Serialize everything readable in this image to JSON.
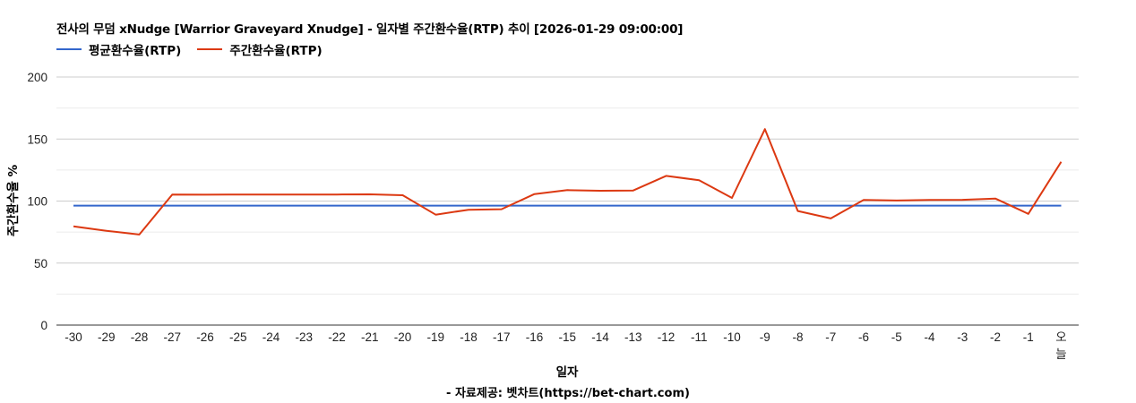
{
  "chart_data": {
    "type": "line",
    "title": "전사의 무덤 xNudge [Warrior Graveyard Xnudge] - 일자별 주간환수율(RTP) 추이 [2026-01-29 09:00:00]",
    "xlabel": "일자",
    "ylabel": "주간환수율 %",
    "ylim": [
      0,
      200
    ],
    "yticks": [
      0,
      50,
      100,
      150,
      200
    ],
    "grid": true,
    "legend_position": "top",
    "categories": [
      "-30",
      "-29",
      "-28",
      "-27",
      "-26",
      "-25",
      "-24",
      "-23",
      "-22",
      "-21",
      "-20",
      "-19",
      "-18",
      "-17",
      "-16",
      "-15",
      "-14",
      "-13",
      "-12",
      "-11",
      "-10",
      "-9",
      "-8",
      "-7",
      "-6",
      "-5",
      "-4",
      "-3",
      "-2",
      "-1",
      "오늘"
    ],
    "series": [
      {
        "name": "평균환수율(RTP)",
        "color": "#3366cc",
        "values": [
          96.3,
          96.3,
          96.3,
          96.3,
          96.3,
          96.3,
          96.3,
          96.3,
          96.3,
          96.3,
          96.3,
          96.3,
          96.3,
          96.3,
          96.3,
          96.3,
          96.3,
          96.3,
          96.3,
          96.3,
          96.3,
          96.3,
          96.3,
          96.3,
          96.3,
          96.3,
          96.3,
          96.3,
          96.3,
          96.3,
          96.3
        ]
      },
      {
        "name": "주간환수율(RTP)",
        "color": "#dc3912",
        "values": [
          79.6,
          76.0,
          73.0,
          105.2,
          105.1,
          105.3,
          105.3,
          105.3,
          105.3,
          105.4,
          104.7,
          89.0,
          93.0,
          93.4,
          105.6,
          108.8,
          108.3,
          108.5,
          120.3,
          116.8,
          102.5,
          158.0,
          92.0,
          86.0,
          100.9,
          100.4,
          100.9,
          101.0,
          102.0,
          89.7,
          131.6
        ]
      }
    ]
  },
  "title": "전사의 무덤 xNudge [Warrior Graveyard Xnudge] - 일자별 주간환수율(RTP) 추이 [2026-01-29 09:00:00]",
  "legend": [
    {
      "label": "평균환수율(RTP)",
      "color": "#3366cc"
    },
    {
      "label": "주간환수율(RTP)",
      "color": "#dc3912"
    }
  ],
  "axes": {
    "xlabel": "일자",
    "ylabel": "주간환수율 %",
    "today_label_top": "오",
    "today_label_bottom": "늘"
  },
  "footer": "- 자료제공: 벳차트(https://bet-chart.com)"
}
